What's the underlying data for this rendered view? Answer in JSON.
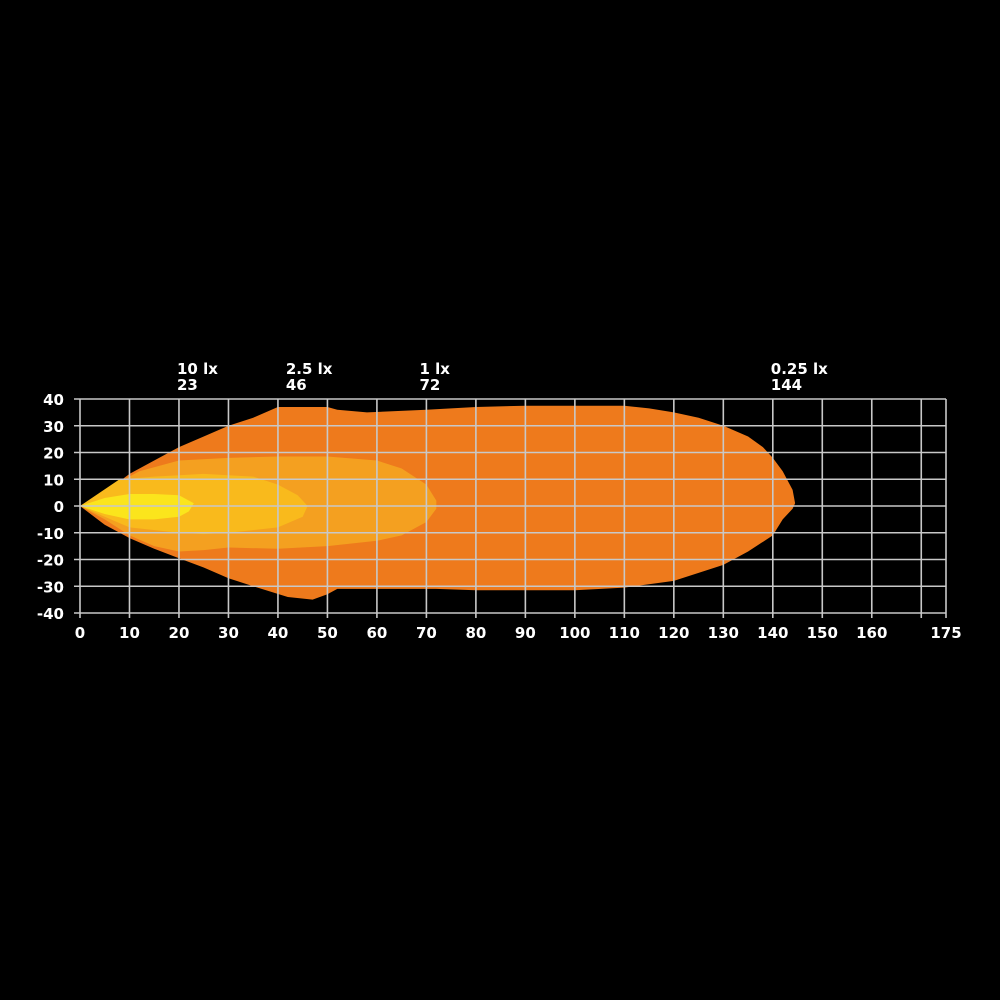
{
  "chart_data": {
    "type": "area",
    "title": "",
    "xlabel": "",
    "ylabel": "",
    "xlim": [
      0,
      175
    ],
    "ylim": [
      -40,
      40
    ],
    "grid": true,
    "x_ticks": [
      0,
      10,
      20,
      30,
      40,
      50,
      60,
      70,
      80,
      90,
      100,
      110,
      120,
      130,
      140,
      150,
      160,
      170,
      175
    ],
    "x_tick_labels": [
      "0",
      "10",
      "20",
      "30",
      "40",
      "50",
      "60",
      "70",
      "80",
      "90",
      "100",
      "110",
      "120",
      "130",
      "140",
      "150",
      "160",
      "",
      "175"
    ],
    "y_ticks": [
      40,
      30,
      20,
      10,
      0,
      -10,
      -20,
      -30,
      -40
    ],
    "y_tick_labels": [
      "40",
      "30",
      "20",
      "10",
      "0",
      "-10",
      "-20",
      "-30",
      "-40"
    ],
    "annotations": [
      {
        "label": "10 lx",
        "distance": "23",
        "x": 20
      },
      {
        "label": "2.5 lx",
        "distance": "46",
        "x": 42
      },
      {
        "label": "1 lx",
        "distance": "72",
        "x": 69
      },
      {
        "label": "0.25 lx",
        "distance": "144",
        "x": 140
      }
    ],
    "series": [
      {
        "level": "0.25 lx",
        "color": "#EE7A1C",
        "points": [
          [
            0,
            0
          ],
          [
            5,
            5
          ],
          [
            10,
            12
          ],
          [
            15,
            17
          ],
          [
            20,
            22
          ],
          [
            25,
            26
          ],
          [
            30,
            30
          ],
          [
            35,
            33
          ],
          [
            40,
            37
          ],
          [
            50,
            37
          ],
          [
            52,
            36
          ],
          [
            58,
            35
          ],
          [
            70,
            36
          ],
          [
            80,
            37
          ],
          [
            90,
            37.5
          ],
          [
            110,
            37.5
          ],
          [
            115,
            36.5
          ],
          [
            120,
            35
          ],
          [
            125,
            33
          ],
          [
            130,
            30
          ],
          [
            135,
            26
          ],
          [
            138,
            22
          ],
          [
            140,
            18
          ],
          [
            142,
            13
          ],
          [
            144,
            6
          ],
          [
            144.5,
            1
          ],
          [
            144,
            -1
          ],
          [
            142,
            -5
          ],
          [
            140,
            -11
          ],
          [
            135,
            -17
          ],
          [
            130,
            -22
          ],
          [
            125,
            -25
          ],
          [
            120,
            -28
          ],
          [
            110,
            -30.5
          ],
          [
            100,
            -31.5
          ],
          [
            80,
            -31.5
          ],
          [
            72,
            -31
          ],
          [
            60,
            -31
          ],
          [
            52,
            -31
          ],
          [
            50,
            -33
          ],
          [
            47,
            -35
          ],
          [
            42,
            -34
          ],
          [
            35,
            -30
          ],
          [
            30,
            -27
          ],
          [
            25,
            -23
          ],
          [
            20,
            -19.5
          ],
          [
            15,
            -16
          ],
          [
            10,
            -12
          ],
          [
            5,
            -7
          ]
        ]
      },
      {
        "level": "1 lx",
        "color": "#F4A020",
        "points": [
          [
            0,
            0
          ],
          [
            8,
            9
          ],
          [
            12,
            13
          ],
          [
            20,
            17
          ],
          [
            30,
            18
          ],
          [
            40,
            18.5
          ],
          [
            50,
            18.5
          ],
          [
            60,
            17
          ],
          [
            65,
            14
          ],
          [
            70,
            8
          ],
          [
            72,
            2
          ],
          [
            72,
            -1
          ],
          [
            70,
            -6
          ],
          [
            65,
            -11
          ],
          [
            60,
            -13
          ],
          [
            50,
            -15
          ],
          [
            40,
            -16
          ],
          [
            30,
            -15.5
          ],
          [
            25,
            -16.5
          ],
          [
            20,
            -17
          ],
          [
            15,
            -15
          ],
          [
            10,
            -11
          ],
          [
            5,
            -5
          ]
        ]
      },
      {
        "level": "2.5 lx",
        "color": "#F9BA1C",
        "points": [
          [
            0,
            0
          ],
          [
            8,
            10
          ],
          [
            15,
            11
          ],
          [
            25,
            12
          ],
          [
            35,
            11
          ],
          [
            40,
            8
          ],
          [
            44,
            4
          ],
          [
            46,
            0
          ],
          [
            45,
            -4
          ],
          [
            40,
            -8
          ],
          [
            35,
            -9
          ],
          [
            30,
            -10
          ],
          [
            25,
            -10.5
          ],
          [
            20,
            -10
          ],
          [
            10,
            -8
          ],
          [
            5,
            -4
          ]
        ]
      },
      {
        "level": "10 lx",
        "color": "#FBE51C",
        "points": [
          [
            0,
            0
          ],
          [
            5,
            3
          ],
          [
            10,
            4.5
          ],
          [
            15,
            4.5
          ],
          [
            20,
            4
          ],
          [
            23,
            1
          ],
          [
            22,
            -2
          ],
          [
            20,
            -4
          ],
          [
            15,
            -5
          ],
          [
            10,
            -5
          ],
          [
            5,
            -3
          ]
        ]
      }
    ],
    "grid_color": "#C8C8C8"
  }
}
